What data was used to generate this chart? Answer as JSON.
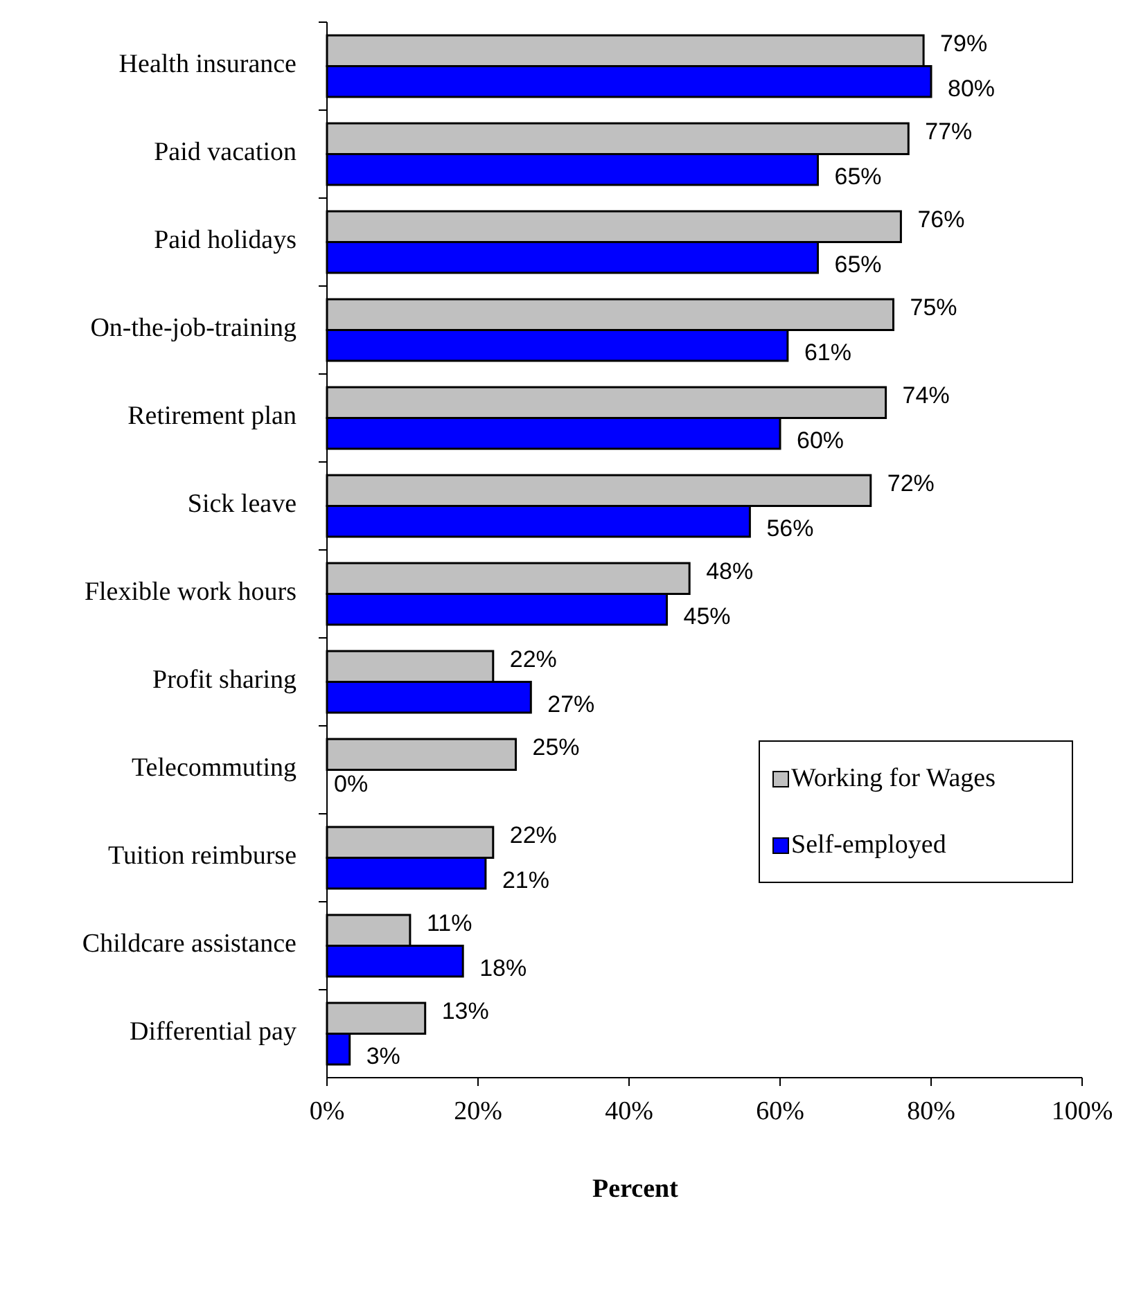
{
  "chart_data": {
    "type": "bar",
    "orientation": "horizontal",
    "xlabel": "Percent",
    "categories": [
      "Health insurance",
      "Paid vacation",
      "Paid holidays",
      "On-the-job-training",
      "Retirement plan",
      "Sick leave",
      "Flexible work hours",
      "Profit sharing",
      "Telecommuting",
      "Tuition reimburse",
      "Childcare assistance",
      "Differential pay"
    ],
    "series": [
      {
        "name": "Working for Wages",
        "color": "#c0c0c0",
        "values": [
          79,
          77,
          76,
          75,
          74,
          72,
          48,
          22,
          25,
          22,
          11,
          13
        ],
        "value_labels": [
          "79%",
          "77%",
          "76%",
          "75%",
          "74%",
          "72%",
          "48%",
          "22%",
          "25%",
          "22%",
          "11%",
          "13%"
        ]
      },
      {
        "name": "Self-employed",
        "color": "#0000ff",
        "values": [
          80,
          65,
          65,
          61,
          60,
          56,
          45,
          27,
          0,
          21,
          18,
          3
        ],
        "value_labels": [
          "80%",
          "65%",
          "65%",
          "61%",
          "60%",
          "56%",
          "45%",
          "27%",
          "0%",
          "21%",
          "18%",
          "3%"
        ]
      }
    ],
    "xlim": [
      0,
      100
    ],
    "xticks": [
      {
        "value": 0,
        "label": "0%"
      },
      {
        "value": 20,
        "label": "20%"
      },
      {
        "value": 40,
        "label": "40%"
      },
      {
        "value": 60,
        "label": "60%"
      },
      {
        "value": 80,
        "label": "80%"
      },
      {
        "value": 100,
        "label": "100%"
      }
    ],
    "grid": false,
    "legend": "right"
  }
}
